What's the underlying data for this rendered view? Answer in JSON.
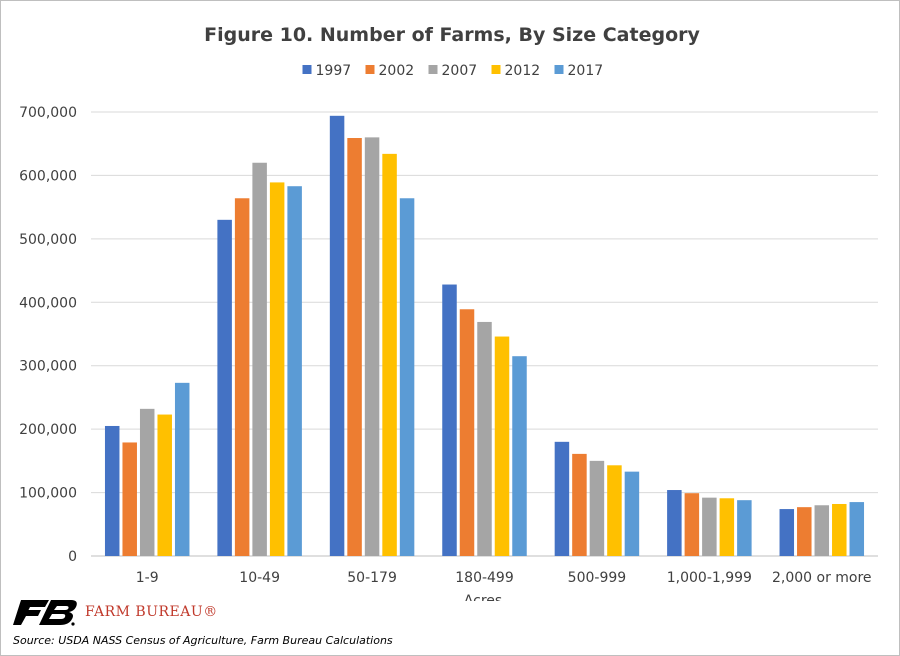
{
  "chart_data": {
    "type": "bar",
    "title": "Figure 10. Number of Farms, By Size Category",
    "xlabel": "Acres",
    "ylabel": "",
    "ylim": [
      0,
      700000
    ],
    "yticks": [
      "0",
      "100,000",
      "200,000",
      "300,000",
      "400,000",
      "500,000",
      "600,000",
      "700,000"
    ],
    "ytick_values": [
      0,
      100000,
      200000,
      300000,
      400000,
      500000,
      600000,
      700000
    ],
    "grid": true,
    "legend_position": "top",
    "categories": [
      "1-9",
      "10-49",
      "50-179",
      "180-499",
      "500-999",
      "1,000-1,999",
      "2,000 or more"
    ],
    "series": [
      {
        "name": "1997",
        "color": "#4472c4",
        "values": [
          205000,
          530000,
          694000,
          428000,
          180000,
          104000,
          74000
        ]
      },
      {
        "name": "2002",
        "color": "#ed7d31",
        "values": [
          179000,
          564000,
          659000,
          389000,
          161000,
          99000,
          77000
        ]
      },
      {
        "name": "2007",
        "color": "#a5a5a5",
        "values": [
          232000,
          620000,
          660000,
          369000,
          150000,
          92000,
          80000
        ]
      },
      {
        "name": "2012",
        "color": "#ffc000",
        "values": [
          223000,
          589000,
          634000,
          346000,
          143000,
          91000,
          82000
        ]
      },
      {
        "name": "2017",
        "color": "#5b9bd5",
        "values": [
          273000,
          583000,
          564000,
          315000,
          133000,
          88000,
          85000
        ]
      }
    ]
  },
  "logo": {
    "text": "FARM BUREAU®",
    "icon": "farm-bureau-fb-icon",
    "color": "#c0392b"
  },
  "source": "Source: USDA NASS Census of Agriculture, Farm Bureau Calculations"
}
